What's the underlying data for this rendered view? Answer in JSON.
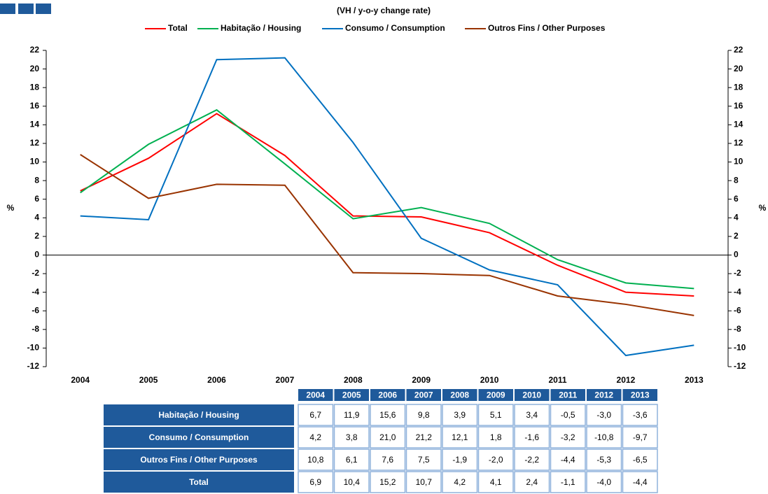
{
  "chart_data": {
    "type": "line",
    "subtitle": "(VH / y-o-y change rate)",
    "y_label": "%",
    "y2_label": "%",
    "categories": [
      "2004",
      "2005",
      "2006",
      "2007",
      "2008",
      "2009",
      "2010",
      "2011",
      "2012",
      "2013"
    ],
    "series": [
      {
        "name": "Total",
        "color": "#ff0000",
        "values": [
          6.9,
          10.4,
          15.2,
          10.7,
          4.2,
          4.1,
          2.4,
          -1.1,
          -4.0,
          -4.4
        ]
      },
      {
        "name": "Habitação / Housing",
        "color": "#00b050",
        "values": [
          6.7,
          11.9,
          15.6,
          9.8,
          3.9,
          5.1,
          3.4,
          -0.5,
          -3.0,
          -3.6
        ]
      },
      {
        "name": "Consumo / Consumption",
        "color": "#0070c0",
        "values": [
          4.2,
          3.8,
          21.0,
          21.2,
          12.1,
          1.8,
          -1.6,
          -3.2,
          -10.8,
          -9.7
        ]
      },
      {
        "name": "Outros Fins / Other Purposes",
        "color": "#993300",
        "values": [
          10.8,
          6.1,
          7.6,
          7.5,
          -1.9,
          -2.0,
          -2.2,
          -4.4,
          -5.3,
          -6.5
        ]
      }
    ],
    "ylim": [
      -12,
      22
    ],
    "yticks": [
      -12,
      -10,
      -8,
      -6,
      -4,
      -2,
      0,
      2,
      4,
      6,
      8,
      10,
      12,
      14,
      16,
      18,
      20,
      22
    ],
    "y2lim": [
      -12,
      22
    ],
    "y2ticks": [
      -12,
      -10,
      -8,
      -6,
      -4,
      -2,
      0,
      2,
      4,
      6,
      8,
      10,
      12,
      14,
      16,
      18,
      20,
      22
    ],
    "grid": false
  },
  "table": {
    "header": [
      "2004",
      "2005",
      "2006",
      "2007",
      "2008",
      "2009",
      "2010",
      "2011",
      "2012",
      "2013"
    ],
    "rows": [
      {
        "label": "Habitação / Housing",
        "cells": [
          "6,7",
          "11,9",
          "15,6",
          "9,8",
          "3,9",
          "5,1",
          "3,4",
          "-0,5",
          "-3,0",
          "-3,6"
        ]
      },
      {
        "label": "Consumo / Consumption",
        "cells": [
          "4,2",
          "3,8",
          "21,0",
          "21,2",
          "12,1",
          "1,8",
          "-1,6",
          "-3,2",
          "-10,8",
          "-9,7"
        ]
      },
      {
        "label": "Outros Fins / Other Purposes",
        "cells": [
          "10,8",
          "6,1",
          "7,6",
          "7,5",
          "-1,9",
          "-2,0",
          "-2,2",
          "-4,4",
          "-5,3",
          "-6,5"
        ]
      },
      {
        "label": "Total",
        "cells": [
          "6,9",
          "10,4",
          "15,2",
          "10,7",
          "4,2",
          "4,1",
          "2,4",
          "-1,1",
          "-4,0",
          "-4,4"
        ]
      }
    ]
  }
}
